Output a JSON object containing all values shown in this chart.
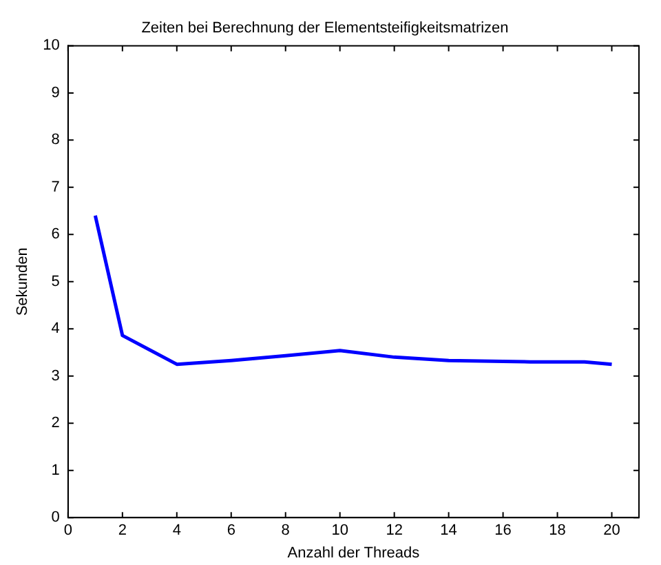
{
  "chart_data": {
    "type": "line",
    "title": "Zeiten bei Berechnung der Elementsteifigkeitsmatrizen",
    "xlabel": "Anzahl der Threads",
    "ylabel": "Sekunden",
    "x": [
      1,
      2,
      4,
      6,
      8,
      10,
      12,
      14,
      16,
      17,
      19,
      20
    ],
    "series": [
      {
        "color": "#0000ff",
        "values": [
          6.4,
          3.86,
          3.25,
          3.33,
          3.43,
          3.54,
          3.4,
          3.33,
          3.31,
          3.3,
          3.3,
          3.25
        ]
      }
    ],
    "xlim": [
      0,
      21
    ],
    "xticks": [
      0,
      2,
      4,
      6,
      8,
      10,
      12,
      14,
      16,
      18,
      20
    ],
    "ylim": [
      0,
      10
    ],
    "yticks": [
      0,
      1,
      2,
      3,
      4,
      5,
      6,
      7,
      8,
      9,
      10
    ],
    "grid": false,
    "legend": false,
    "marker": "none",
    "line_style": "solid"
  }
}
